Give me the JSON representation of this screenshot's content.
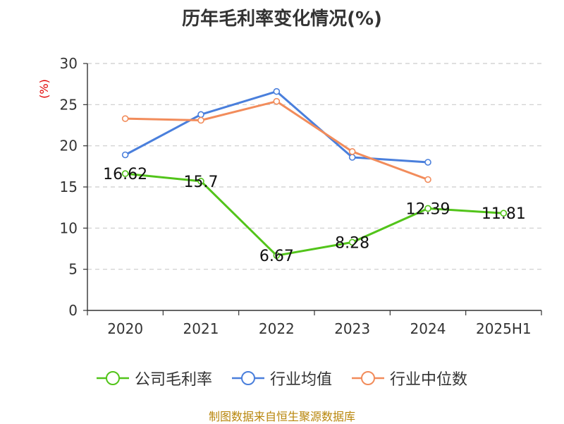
{
  "page": {
    "title": "历年毛利率变化情况(%)",
    "source": "制图数据来自恒生聚源数据库"
  },
  "colors": {
    "source": "#b8860b",
    "unit": "#e00000",
    "axis": "#333333",
    "grid": "#cccccc"
  },
  "chart_data": {
    "type": "line",
    "title": "历年毛利率变化情况(%)",
    "ylabel": "(%)",
    "categories": [
      "2020",
      "2021",
      "2022",
      "2023",
      "2024",
      "2025H1"
    ],
    "ylim": [
      0,
      30
    ],
    "yticks": [
      0,
      5,
      10,
      15,
      20,
      25,
      30
    ],
    "grid": true,
    "legend_position": "bottom",
    "series": [
      {
        "name": "公司毛利率",
        "color": "#52c41a",
        "values": [
          16.62,
          15.7,
          6.67,
          8.28,
          12.39,
          11.81
        ],
        "labels": [
          "16.62",
          "15.7",
          "6.67",
          "8.28",
          "12.39",
          "11.81"
        ]
      },
      {
        "name": "行业均值",
        "color": "#4a7fdc",
        "values": [
          18.9,
          23.8,
          26.6,
          18.6,
          18.0,
          null
        ]
      },
      {
        "name": "行业中位数",
        "color": "#f28c5b",
        "values": [
          23.3,
          23.1,
          25.4,
          19.3,
          15.9,
          null
        ]
      }
    ]
  }
}
